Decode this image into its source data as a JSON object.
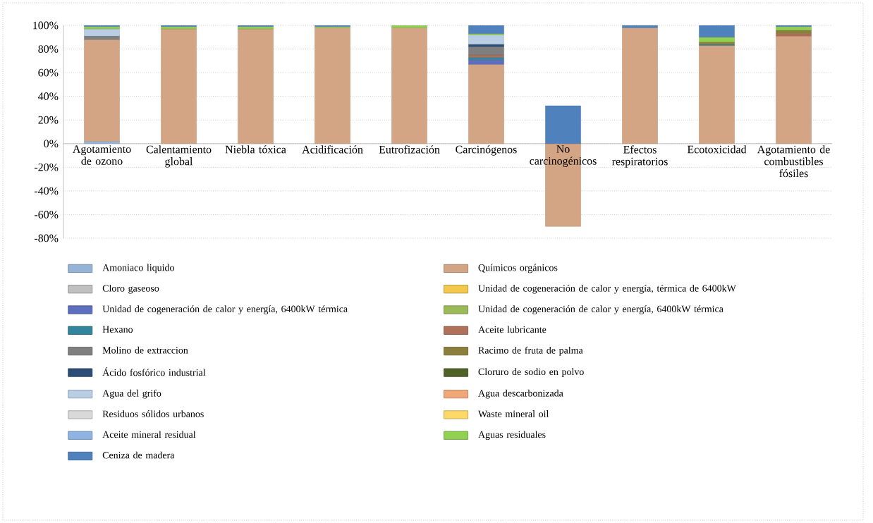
{
  "chart_data": {
    "type": "bar",
    "stacked": true,
    "categories": [
      "Agotamiento de ozono",
      "Calentamiento global",
      "Niebla tóxica",
      "Acidificación",
      "Eutrofización",
      "Carcinógenos",
      "No carcinogénicos",
      "Efectos respiratorios",
      "Ecotoxicidad",
      "Agotamiento de combustibles fósiles"
    ],
    "ylim": [
      -80,
      100
    ],
    "yticks": [
      {
        "value": -80,
        "label": "-80%"
      },
      {
        "value": -60,
        "label": "-60%"
      },
      {
        "value": -40,
        "label": "-40%"
      },
      {
        "value": -20,
        "label": "-20%"
      },
      {
        "value": 0,
        "label": "0%"
      },
      {
        "value": 20,
        "label": "20%"
      },
      {
        "value": 40,
        "label": "40%"
      },
      {
        "value": 60,
        "label": "60%"
      },
      {
        "value": 80,
        "label": "80%"
      },
      {
        "value": 100,
        "label": "100%"
      }
    ],
    "grid": "y",
    "legend": "bottom",
    "series": [
      {
        "name": "Amoniaco liquido",
        "color": "#95b3d7",
        "values": [
          2,
          0,
          0,
          0,
          0,
          0,
          0,
          0,
          0,
          0
        ]
      },
      {
        "name": "Químicos orgánicos",
        "color": "#d4a584",
        "values": [
          86,
          97,
          97,
          98,
          98,
          67,
          -70,
          98,
          83,
          91
        ]
      },
      {
        "name": "Cloro gaseoso",
        "color": "#c0c0c0",
        "values": [
          0,
          0,
          0,
          0,
          0,
          0,
          0,
          0,
          0,
          0
        ]
      },
      {
        "name": "Unidad de cogeneración de calor y energía, térmica de 6400kW",
        "color": "#f2c94c",
        "values": [
          0,
          0,
          0,
          0,
          0,
          0,
          0,
          0,
          0,
          0
        ]
      },
      {
        "name": "Unidad de cogeneración de calor y energía, 6400kW térmica",
        "color": "#5f6fbf",
        "values": [
          0,
          0,
          0,
          0,
          0,
          4,
          0,
          0,
          0,
          0
        ]
      },
      {
        "name": "Unidad de cogeneración de calor y energía, 6400kW térmica",
        "color": "#9bbb59",
        "values": [
          0,
          0,
          0,
          0,
          0,
          0,
          0,
          0,
          0,
          0
        ]
      },
      {
        "name": "Hexano",
        "color": "#31859c",
        "values": [
          0,
          0,
          0,
          0,
          0,
          2,
          0,
          0,
          1,
          0
        ]
      },
      {
        "name": "Aceite lubricante",
        "color": "#b0705a",
        "values": [
          0,
          0,
          0,
          0,
          0,
          2,
          0,
          0,
          0,
          2
        ]
      },
      {
        "name": "Molino de extraccion",
        "color": "#7f7f7f",
        "values": [
          3,
          0,
          0,
          0,
          0,
          7,
          0,
          0,
          0,
          0
        ]
      },
      {
        "name": "Racimo de fruta de palma",
        "color": "#8c7e3c",
        "values": [
          0,
          0,
          0,
          0,
          0,
          0,
          0,
          0,
          2,
          3
        ]
      },
      {
        "name": "Ácido fosfórico industrial",
        "color": "#2c4d75",
        "values": [
          0,
          0,
          0,
          0,
          0,
          2,
          0,
          0,
          0,
          0
        ]
      },
      {
        "name": "Cloruro de sodio en polvo",
        "color": "#4f6228",
        "values": [
          0,
          0,
          0,
          0,
          0,
          0,
          0,
          0,
          0,
          0
        ]
      },
      {
        "name": "Agua del grifo",
        "color": "#b9cde5",
        "values": [
          6,
          0,
          0,
          0,
          0,
          8,
          0,
          0,
          0,
          0
        ]
      },
      {
        "name": "Agua descarbonizada",
        "color": "#f0a878",
        "values": [
          0,
          0,
          0,
          0,
          0,
          0,
          0,
          0,
          0,
          0
        ]
      },
      {
        "name": "Residuos sólidos urbanos",
        "color": "#d9d9d9",
        "values": [
          0,
          0,
          0,
          0,
          0,
          0,
          0,
          0,
          0,
          0
        ]
      },
      {
        "name": "Waste mineral oil",
        "color": "#ffd966",
        "values": [
          0,
          0,
          0,
          0,
          0,
          0,
          0,
          0,
          0,
          0
        ]
      },
      {
        "name": "Aceite mineral residual",
        "color": "#8eb4e3",
        "values": [
          0,
          0,
          0,
          0,
          0,
          0,
          0,
          0,
          0,
          0
        ]
      },
      {
        "name": "Aguas residuales",
        "color": "#92d050",
        "values": [
          2,
          2,
          2,
          1,
          2,
          1,
          0,
          0,
          4,
          3
        ]
      },
      {
        "name": "Ceniza de madera",
        "color": "#4f81bd",
        "values": [
          1,
          1,
          1,
          1,
          0,
          7,
          32,
          2,
          10,
          1
        ]
      }
    ]
  }
}
